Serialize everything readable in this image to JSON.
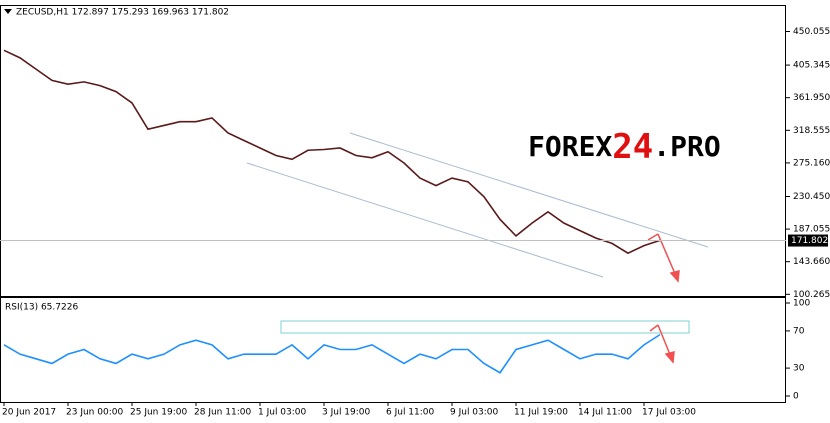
{
  "chart_data": [
    {
      "type": "line",
      "title": "ZECUSD,H1  172.897 175.293 169.963 171.802",
      "categories": [
        "20 Jun 2017",
        null,
        null,
        null,
        "23 Jun 00:00",
        null,
        null,
        null,
        "25 Jun 19:00",
        null,
        null,
        null,
        "28 Jun 11:00",
        null,
        null,
        null,
        "1 Jul 03:00",
        null,
        null,
        null,
        "3 Jul 19:00",
        null,
        null,
        null,
        "6 Jul 11:00",
        null,
        null,
        null,
        "9 Jul 03:00",
        null,
        null,
        null,
        "11 Jul 19:00",
        null,
        null,
        null,
        "14 Jul 11:00",
        null,
        null,
        null,
        "17 Jul 03:00",
        null
      ],
      "series": [
        {
          "name": "ZECUSD,H1",
          "color": "#5a1a1a",
          "values": [
            425,
            415,
            400,
            385,
            380,
            383,
            378,
            370,
            355,
            320,
            325,
            330,
            330,
            335,
            315,
            305,
            295,
            285,
            280,
            292,
            293,
            295,
            285,
            282,
            290,
            275,
            255,
            245,
            255,
            250,
            230,
            200,
            178,
            195,
            210,
            195,
            185,
            175,
            168,
            155,
            165,
            172
          ]
        }
      ],
      "last_value": 171.802,
      "ylim": [
        98,
        484
      ],
      "yticks": [
        450.055,
        405.345,
        {
          "value": 361.95,
          "label": "361.950"
        },
        318.555,
        {
          "value": 275.16,
          "label": "275.160"
        },
        {
          "value": 230.45,
          "label": "230.450"
        },
        187.055,
        {
          "value": 143.66,
          "label": "143.660"
        },
        100.265
      ],
      "watermark": [
        "FOREX",
        "24",
        ".PRO"
      ]
    },
    {
      "type": "line",
      "title": "RSI(13) 65.7226",
      "series": [
        {
          "name": "RSI(13)",
          "color": "#1e90ff",
          "values": [
            55,
            45,
            40,
            35,
            45,
            50,
            40,
            35,
            45,
            40,
            45,
            55,
            60,
            55,
            40,
            45,
            45,
            45,
            55,
            40,
            55,
            50,
            50,
            55,
            45,
            35,
            45,
            40,
            50,
            50,
            35,
            25,
            50,
            55,
            60,
            50,
            40,
            45,
            45,
            40,
            55,
            66
          ]
        }
      ],
      "ylim": [
        0,
        100
      ],
      "yticks": [
        100,
        70,
        30,
        0
      ]
    }
  ]
}
